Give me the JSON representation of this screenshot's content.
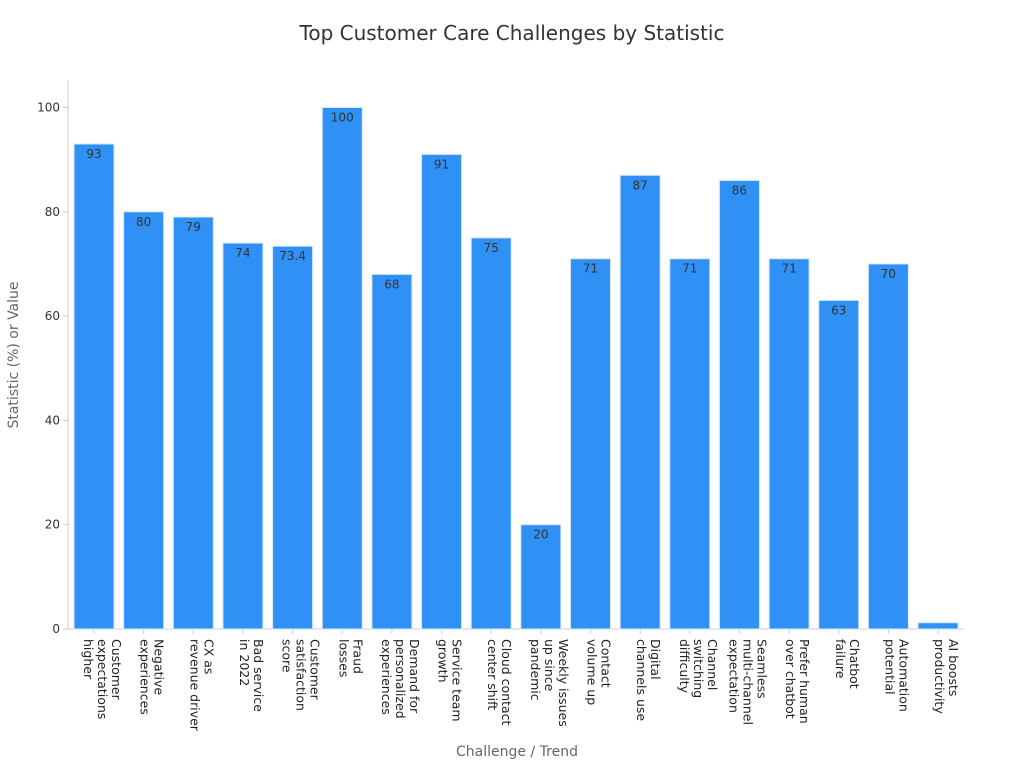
{
  "chart_data": {
    "type": "bar",
    "title": "Top Customer Care Challenges by Statistic",
    "xlabel": "Challenge / Trend",
    "ylabel": "Statistic (%) or Value",
    "ylim": [
      0,
      105
    ],
    "yticks": [
      0,
      20,
      40,
      60,
      80,
      100
    ],
    "grid": false,
    "bar_color": "#2f91f6",
    "bar_edge_color": "#d7e6f5",
    "categories": [
      "Customer expectations higher",
      "Negative experiences",
      "CX as revenue driver",
      "Bad service in 2022",
      "Customer satisfaction score",
      "Fraud losses",
      "Demand for personalized experiences",
      "Service team growth",
      "Cloud contact center shift",
      "Weekly issues up since pandemic",
      "Contact volume up",
      "Digital channels use",
      "Channel switching difficulty",
      "Seamless multi-channel expectation",
      "Prefer human over chatbot",
      "Chatbot failure",
      "Automation potential",
      "AI boosts productivity"
    ],
    "category_lines": [
      [
        "Customer",
        "expectations",
        "higher"
      ],
      [
        "Negative",
        "experiences"
      ],
      [
        "CX as",
        "revenue driver"
      ],
      [
        "Bad service",
        "in 2022"
      ],
      [
        "Customer",
        "satisfaction",
        "score"
      ],
      [
        "Fraud",
        "losses"
      ],
      [
        "Demand for",
        "personalized",
        "experiences"
      ],
      [
        "Service team",
        "growth"
      ],
      [
        "Cloud contact",
        "center shift"
      ],
      [
        "Weekly issues",
        "up since",
        "pandemic"
      ],
      [
        "Contact",
        "volume up"
      ],
      [
        "Digital",
        "channels use"
      ],
      [
        "Channel",
        "switching",
        "difficulty"
      ],
      [
        "Seamless",
        "multi-channel",
        "expectation"
      ],
      [
        "Prefer human",
        "over chatbot"
      ],
      [
        "Chatbot",
        "failure"
      ],
      [
        "Automation",
        "potential"
      ],
      [
        "AI boosts",
        "productivity"
      ]
    ],
    "values": [
      93,
      80,
      79,
      74,
      73.4,
      100,
      68,
      91,
      75,
      20,
      71,
      87,
      71,
      86,
      71,
      63,
      70,
      1.2
    ],
    "value_labels": [
      "93",
      "80",
      "79",
      "74",
      "73.4",
      "100",
      "68",
      "91",
      "75",
      "20",
      "71",
      "87",
      "71",
      "86",
      "71",
      "63",
      "70",
      ""
    ]
  }
}
